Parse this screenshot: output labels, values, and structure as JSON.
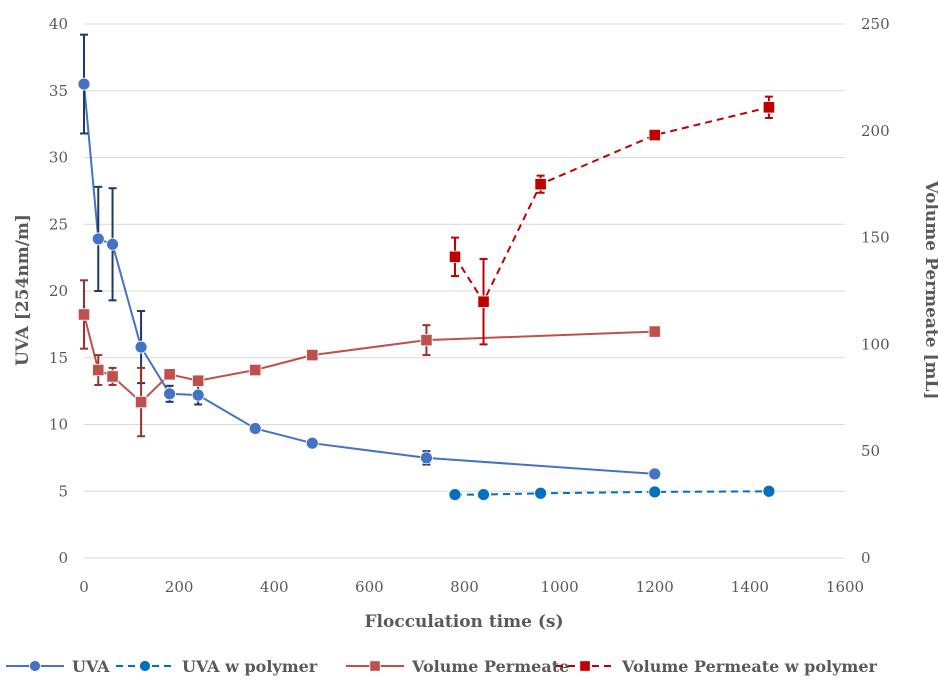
{
  "chart_data": {
    "type": "line",
    "title": "",
    "xlabel": "Flocculation time (s)",
    "ylabel_left": "UVA [254nm/m]",
    "ylabel_right": "Volume Permeate [mL]",
    "xlim": [
      0,
      1600
    ],
    "x_ticks": [
      "0",
      "200",
      "400",
      "600",
      "800",
      "1000",
      "1200",
      "1400",
      "1600"
    ],
    "ylim_left": [
      0,
      40
    ],
    "y_left_ticks": [
      "0",
      "5",
      "10",
      "15",
      "20",
      "25",
      "30",
      "35",
      "40"
    ],
    "ylim_right": [
      0,
      250
    ],
    "y_right_ticks": [
      "0",
      "50",
      "100",
      "150",
      "200",
      "250"
    ],
    "grid": "horizontal",
    "legend_position": "bottom",
    "colors": {
      "uva": "#4472C4",
      "uva_err": "#1F3864",
      "uva_polymer": "#0070C0",
      "vol": "#C0504D",
      "vol_err": "#A0302D",
      "vol_polymer": "#C00000",
      "grid": "#D9D9D9"
    },
    "series": [
      {
        "name": "UVA",
        "axis": "left",
        "line": "solid",
        "marker": "circle",
        "x": [
          0,
          30,
          60,
          120,
          180,
          240,
          360,
          480,
          720,
          1200
        ],
        "y": [
          35.5,
          23.9,
          23.5,
          15.8,
          12.3,
          12.2,
          9.7,
          8.6,
          7.5,
          6.3
        ],
        "err": [
          3.7,
          3.9,
          4.2,
          2.7,
          0.6,
          0.7,
          0.3,
          0.1,
          0.5,
          0.1
        ]
      },
      {
        "name": "UVA w polymer",
        "axis": "left",
        "line": "dashed",
        "marker": "circle",
        "x": [
          780,
          840,
          960,
          1200,
          1440
        ],
        "y": [
          4.75,
          4.75,
          4.85,
          4.95,
          5.0
        ],
        "err": [
          0,
          0,
          0,
          0,
          0
        ]
      },
      {
        "name": "Volume Permeate",
        "axis": "right",
        "line": "solid",
        "marker": "square",
        "x": [
          0,
          30,
          60,
          120,
          180,
          240,
          360,
          480,
          720,
          1200
        ],
        "y": [
          114,
          88,
          85,
          73,
          86,
          83,
          88,
          95,
          102,
          106
        ],
        "err": [
          16,
          7,
          4,
          16,
          2,
          2,
          2,
          1,
          7,
          0
        ]
      },
      {
        "name": "Volume Permeate w polymer",
        "axis": "right",
        "line": "dashed",
        "marker": "square",
        "x": [
          780,
          840,
          960,
          1200,
          1440
        ],
        "y": [
          141,
          120,
          175,
          198,
          211
        ],
        "err": [
          9,
          20,
          4,
          1,
          5
        ]
      }
    ]
  }
}
